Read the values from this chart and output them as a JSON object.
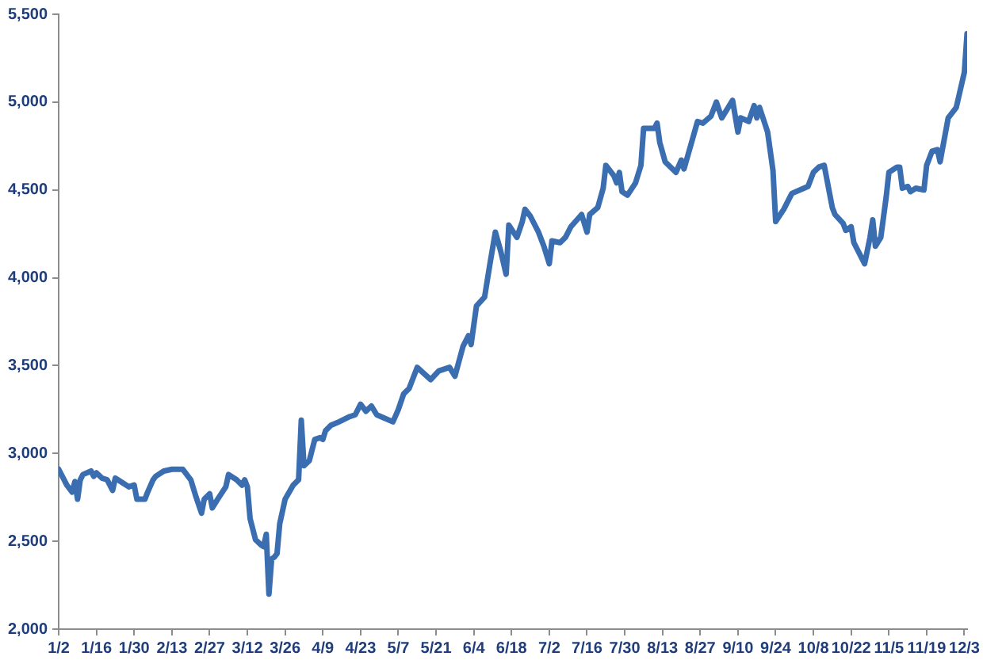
{
  "chart_data": {
    "type": "line",
    "x": [
      "--01-02",
      "--01-05",
      "--01-07",
      "--01-08",
      "--01-09",
      "--01-10",
      "--01-11",
      "--01-14",
      "--01-15",
      "--01-16",
      "--01-18",
      "--01-20",
      "--01-22",
      "--01-23",
      "--01-25",
      "--01-28",
      "--01-30",
      "--01-31",
      "--02-03",
      "--02-04",
      "--02-06",
      "--02-07",
      "--02-10",
      "--02-13",
      "--02-17",
      "--02-20",
      "--02-22",
      "--02-24",
      "--02-25",
      "--02-27",
      "--02-28",
      "--03-01",
      "--03-04",
      "--03-05",
      "--03-08",
      "--03-10",
      "--03-11",
      "--03-12",
      "--03-13",
      "--03-15",
      "--03-17",
      "--03-18",
      "--03-19",
      "--03-20",
      "--03-21",
      "--03-22",
      "--03-23",
      "--03-24",
      "--03-26",
      "--03-29",
      "--03-31",
      "--04-01",
      "--04-02",
      "--04-04",
      "--04-06",
      "--04-08",
      "--04-09",
      "--04-10",
      "--04-12",
      "--04-15",
      "--04-19",
      "--04-21",
      "--04-23",
      "--04-25",
      "--04-27",
      "--04-29",
      "--05-05",
      "--05-07",
      "--05-09",
      "--05-11",
      "--05-14",
      "--05-19",
      "--05-22",
      "--05-26",
      "--05-28",
      "--05-31",
      "--06-02",
      "--06-03",
      "--06-05",
      "--06-08",
      "--06-10",
      "--06-12",
      "--06-14",
      "--06-16",
      "--06-17",
      "--06-20",
      "--06-22",
      "--06-23",
      "--06-25",
      "--06-28",
      "--06-30",
      "--07-02",
      "--07-03",
      "--07-06",
      "--07-08",
      "--07-10",
      "--07-14",
      "--07-16",
      "--07-17",
      "--07-20",
      "--07-22",
      "--07-23",
      "--07-26",
      "--07-27",
      "--07-28",
      "--07-29",
      "--07-31",
      "--08-03",
      "--08-05",
      "--08-06",
      "--08-10",
      "--08-11",
      "--08-12",
      "--08-14",
      "--08-18",
      "--08-20",
      "--08-21",
      "--08-26",
      "--08-28",
      "--08-31",
      "--09-02",
      "--09-04",
      "--09-08",
      "--09-10",
      "--09-11",
      "--09-14",
      "--09-16",
      "--09-17",
      "--09-18",
      "--09-21",
      "--09-23",
      "--09-24",
      "--09-27",
      "--09-30",
      "--10-06",
      "--10-08",
      "--10-10",
      "--10-12",
      "--10-15",
      "--10-16",
      "--10-19",
      "--10-20",
      "--10-22",
      "--10-23",
      "--10-27",
      "--10-29",
      "--10-30",
      "--10-31",
      "--11-02",
      "--11-04",
      "--11-05",
      "--11-08",
      "--11-09",
      "--11-10",
      "--11-12",
      "--11-13",
      "--11-15",
      "--11-18",
      "--11-19",
      "--11-21",
      "--11-23",
      "--11-24",
      "--11-27",
      "--11-30",
      "--12-03",
      "--12-04"
    ],
    "series": [
      {
        "color": "#3a6eb0",
        "values": [
          2910,
          2820,
          2780,
          2840,
          2740,
          2850,
          2880,
          2900,
          2870,
          2890,
          2860,
          2850,
          2790,
          2860,
          2840,
          2810,
          2820,
          2740,
          2740,
          2780,
          2850,
          2870,
          2900,
          2910,
          2910,
          2850,
          2750,
          2660,
          2740,
          2770,
          2690,
          2740,
          2810,
          2880,
          2850,
          2820,
          2850,
          2810,
          2630,
          2510,
          2480,
          2470,
          2540,
          2200,
          2400,
          2410,
          2430,
          2600,
          2740,
          2820,
          2850,
          3190,
          2930,
          2960,
          3080,
          3090,
          3080,
          3130,
          3160,
          3180,
          3210,
          3220,
          3280,
          3240,
          3270,
          3220,
          3180,
          3250,
          3340,
          3370,
          3490,
          3420,
          3470,
          3490,
          3440,
          3610,
          3670,
          3620,
          3840,
          3890,
          4080,
          4260,
          4150,
          4020,
          4300,
          4230,
          4320,
          4390,
          4350,
          4260,
          4180,
          4080,
          4210,
          4200,
          4230,
          4290,
          4360,
          4260,
          4360,
          4400,
          4510,
          4640,
          4580,
          4540,
          4600,
          4490,
          4470,
          4540,
          4640,
          4850,
          4850,
          4880,
          4770,
          4660,
          4600,
          4670,
          4620,
          4890,
          4880,
          4920,
          5000,
          4910,
          5010,
          4830,
          4910,
          4890,
          4980,
          4910,
          4970,
          4830,
          4610,
          4320,
          4390,
          4480,
          4520,
          4600,
          4630,
          4640,
          4400,
          4360,
          4310,
          4270,
          4290,
          4200,
          4080,
          4230,
          4330,
          4180,
          4230,
          4460,
          4600,
          4630,
          4630,
          4510,
          4520,
          4490,
          4510,
          4500,
          4640,
          4720,
          4730,
          4660,
          4910,
          4970,
          5170,
          5390
        ]
      }
    ],
    "xlim": [
      "--01-02",
      "--12-04"
    ],
    "xticks": [
      {
        "value": "--01-02",
        "label": "1/2"
      },
      {
        "value": "--01-16",
        "label": "1/16"
      },
      {
        "value": "--01-30",
        "label": "1/30"
      },
      {
        "value": "--02-13",
        "label": "2/13"
      },
      {
        "value": "--02-27",
        "label": "2/27"
      },
      {
        "value": "--03-12",
        "label": "3/12"
      },
      {
        "value": "--03-26",
        "label": "3/26"
      },
      {
        "value": "--04-09",
        "label": "4/9"
      },
      {
        "value": "--04-23",
        "label": "4/23"
      },
      {
        "value": "--05-07",
        "label": "5/7"
      },
      {
        "value": "--05-21",
        "label": "5/21"
      },
      {
        "value": "--06-04",
        "label": "6/4"
      },
      {
        "value": "--06-18",
        "label": "6/18"
      },
      {
        "value": "--07-02",
        "label": "7/2"
      },
      {
        "value": "--07-16",
        "label": "7/16"
      },
      {
        "value": "--07-30",
        "label": "7/30"
      },
      {
        "value": "--08-13",
        "label": "8/13"
      },
      {
        "value": "--08-27",
        "label": "8/27"
      },
      {
        "value": "--09-10",
        "label": "9/10"
      },
      {
        "value": "--09-24",
        "label": "9/24"
      },
      {
        "value": "--10-08",
        "label": "10/8"
      },
      {
        "value": "--10-22",
        "label": "10/22"
      },
      {
        "value": "--11-05",
        "label": "11/5"
      },
      {
        "value": "--11-19",
        "label": "11/19"
      },
      {
        "value": "--12-03",
        "label": "12/3"
      }
    ],
    "ylim": [
      2000,
      5500
    ],
    "yticks": [
      {
        "value": 2000,
        "label": "2,000"
      },
      {
        "value": 2500,
        "label": "2,500"
      },
      {
        "value": 3000,
        "label": "3,000"
      },
      {
        "value": 3500,
        "label": "3,500"
      },
      {
        "value": 4000,
        "label": "4,000"
      },
      {
        "value": 4500,
        "label": "4,500"
      },
      {
        "value": 5000,
        "label": "5,000"
      },
      {
        "value": 5500,
        "label": "5,500"
      }
    ],
    "grid": false,
    "legend": false,
    "marker": "none",
    "line_style": "solid"
  }
}
